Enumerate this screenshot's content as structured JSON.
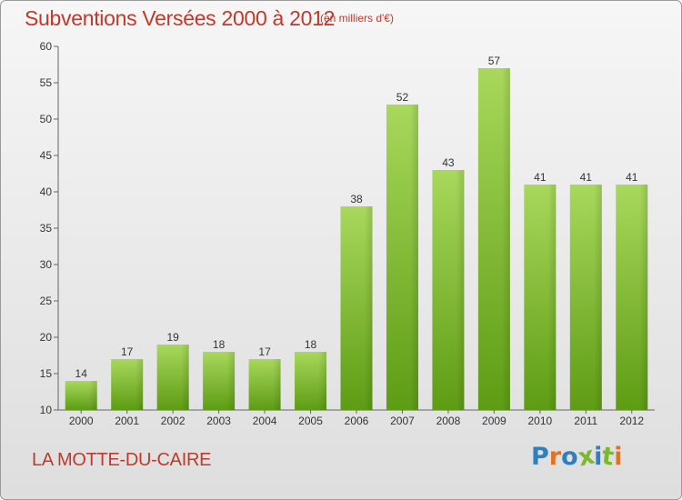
{
  "header": {
    "title": "Subventions Versées 2000 à 2012",
    "unit": "(en milliers d'€)"
  },
  "footer": {
    "commune": "LA MOTTE-DU-CAIRE",
    "logo": "Proxiti"
  },
  "colors": {
    "title": "#c0392b",
    "bar_light": "#a8d85c",
    "bar_dark": "#5e9c14",
    "axis": "#666666",
    "logo_letters": [
      "#2f7fc1",
      "#e6711f",
      "#2f7fc1",
      "#7ab82e",
      "#2f7fc1",
      "#7ab82e",
      "#e6711f"
    ]
  },
  "chart_data": {
    "type": "bar",
    "categories": [
      "2000",
      "2001",
      "2002",
      "2003",
      "2004",
      "2005",
      "2006",
      "2007",
      "2008",
      "2009",
      "2010",
      "2011",
      "2012"
    ],
    "values": [
      14,
      17,
      19,
      18,
      17,
      18,
      38,
      52,
      43,
      57,
      41,
      41,
      41
    ],
    "title": "Subventions Versées 2000 à 2012",
    "xlabel": "",
    "ylabel": "",
    "ylim": [
      10,
      60
    ],
    "yticks": [
      10,
      15,
      20,
      25,
      30,
      35,
      40,
      45,
      50,
      55,
      60
    ],
    "grid": false,
    "data_labels": true
  }
}
